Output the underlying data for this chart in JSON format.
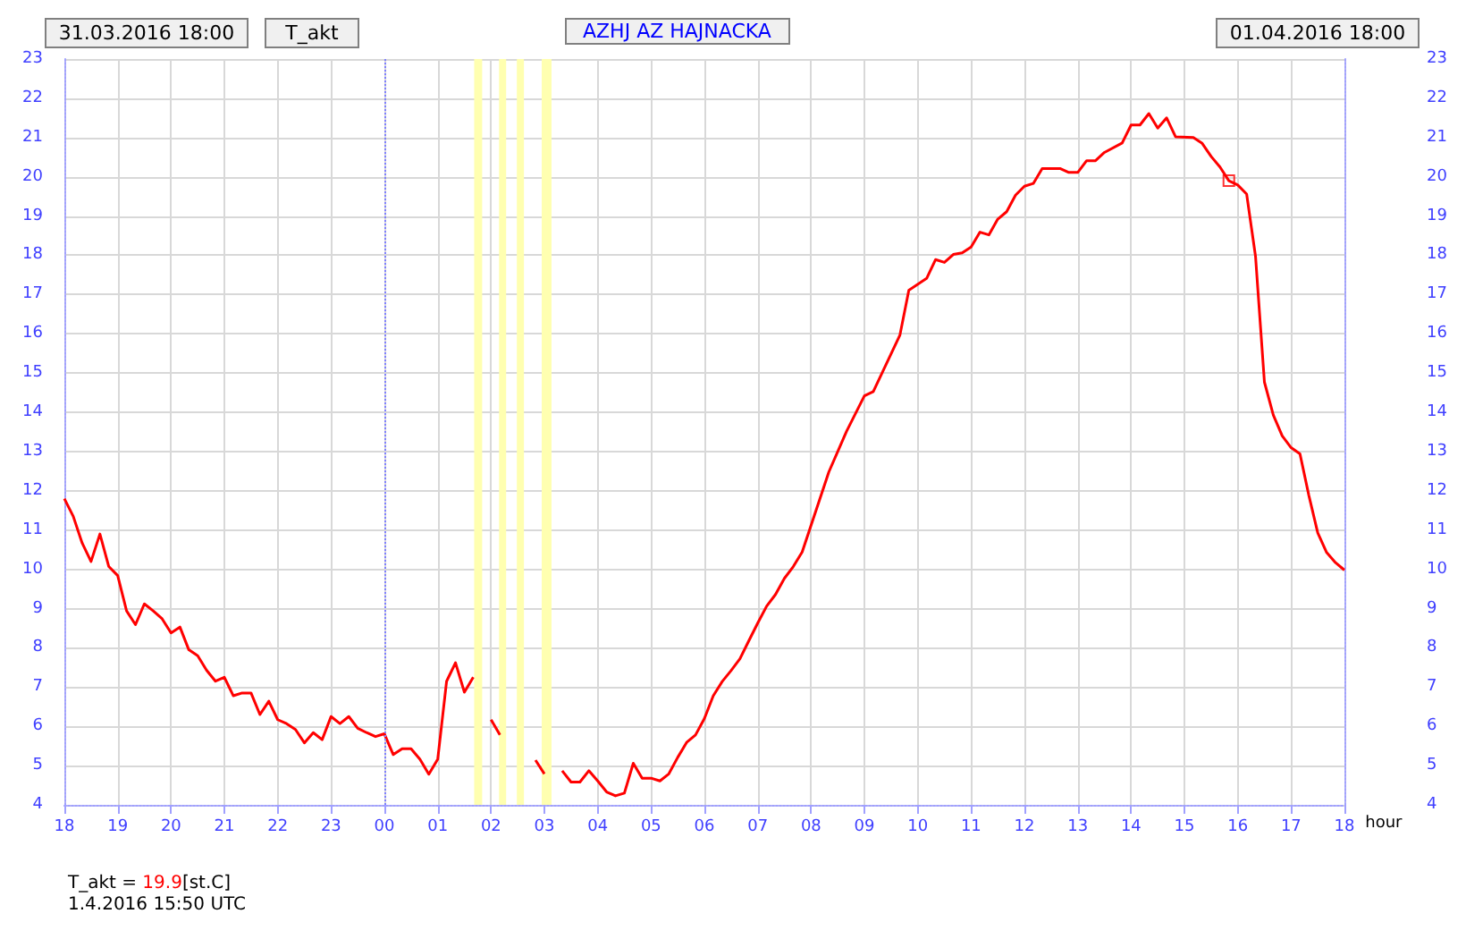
{
  "chart_data": {
    "type": "line",
    "title": "AZHJ AZ HAJNACKA",
    "subtitle": "T_akt",
    "xlabel": "hour",
    "x": [
      "2016-03-31T18:00",
      "2016-03-31T18:10",
      "2016-03-31T18:20",
      "2016-03-31T18:30",
      "2016-03-31T18:40",
      "2016-03-31T18:50",
      "2016-03-31T19:00",
      "2016-03-31T19:10",
      "2016-03-31T19:20",
      "2016-03-31T19:30",
      "2016-03-31T19:40",
      "2016-03-31T19:50",
      "2016-03-31T20:00",
      "2016-03-31T20:10",
      "2016-03-31T20:20",
      "2016-03-31T20:30",
      "2016-03-31T20:40",
      "2016-03-31T20:50",
      "2016-03-31T21:00",
      "2016-03-31T21:10",
      "2016-03-31T21:20",
      "2016-03-31T21:30",
      "2016-03-31T21:40",
      "2016-03-31T21:50",
      "2016-03-31T22:00",
      "2016-03-31T22:10",
      "2016-03-31T22:20",
      "2016-03-31T22:30",
      "2016-03-31T22:40",
      "2016-03-31T22:50",
      "2016-03-31T23:00",
      "2016-03-31T23:10",
      "2016-03-31T23:20",
      "2016-03-31T23:30",
      "2016-03-31T23:40",
      "2016-03-31T23:50",
      "2016-04-01T00:00",
      "2016-04-01T00:10",
      "2016-04-01T00:20",
      "2016-04-01T00:30",
      "2016-04-01T00:40",
      "2016-04-01T00:50",
      "2016-04-01T01:00",
      "2016-04-01T01:10",
      "2016-04-01T01:20",
      "2016-04-01T01:30",
      "2016-04-01T01:40",
      "2016-04-01T01:50",
      "2016-04-01T02:00",
      "2016-04-01T02:10",
      "2016-04-01T02:30",
      "2016-04-01T02:50",
      "2016-04-01T03:00",
      "2016-04-01T03:10",
      "2016-04-01T03:20",
      "2016-04-01T03:30",
      "2016-04-01T03:40",
      "2016-04-01T03:50",
      "2016-04-01T04:00",
      "2016-04-01T04:10",
      "2016-04-01T04:20",
      "2016-04-01T04:30",
      "2016-04-01T04:40",
      "2016-04-01T04:50",
      "2016-04-01T05:00",
      "2016-04-01T05:10",
      "2016-04-01T05:20",
      "2016-04-01T05:30",
      "2016-04-01T05:40",
      "2016-04-01T05:50",
      "2016-04-01T06:00",
      "2016-04-01T06:10",
      "2016-04-01T06:20",
      "2016-04-01T06:30",
      "2016-04-01T06:40",
      "2016-04-01T06:50",
      "2016-04-01T07:00",
      "2016-04-01T07:10",
      "2016-04-01T07:20",
      "2016-04-01T07:30",
      "2016-04-01T07:40",
      "2016-04-01T07:50",
      "2016-04-01T08:20",
      "2016-04-01T08:40",
      "2016-04-01T09:00",
      "2016-04-01T09:10",
      "2016-04-01T09:40",
      "2016-04-01T09:50",
      "2016-04-01T10:10",
      "2016-04-01T10:20",
      "2016-04-01T10:30",
      "2016-04-01T10:40",
      "2016-04-01T10:50",
      "2016-04-01T11:00",
      "2016-04-01T11:10",
      "2016-04-01T11:20",
      "2016-04-01T11:30",
      "2016-04-01T11:40",
      "2016-04-01T11:50",
      "2016-04-01T12:00",
      "2016-04-01T12:10",
      "2016-04-01T12:20",
      "2016-04-01T12:40",
      "2016-04-01T12:50",
      "2016-04-01T13:00",
      "2016-04-01T13:10",
      "2016-04-01T13:20",
      "2016-04-01T13:30",
      "2016-04-01T13:50",
      "2016-04-01T14:00",
      "2016-04-01T14:10",
      "2016-04-01T14:20",
      "2016-04-01T14:30",
      "2016-04-01T14:40",
      "2016-04-01T14:50",
      "2016-04-01T15:10",
      "2016-04-01T15:20",
      "2016-04-01T15:30",
      "2016-04-01T15:40",
      "2016-04-01T15:50",
      "2016-04-01T16:00",
      "2016-04-01T16:10",
      "2016-04-01T16:20",
      "2016-04-01T16:30",
      "2016-04-01T16:40",
      "2016-04-01T16:50",
      "2016-04-01T17:00",
      "2016-04-01T17:10",
      "2016-04-01T17:20",
      "2016-04-01T17:30",
      "2016-04-01T17:40",
      "2016-04-01T17:50",
      "2016-04-01T18:00"
    ],
    "series": [
      {
        "color": "#ff0000",
        "values": [
          11.8,
          11.35,
          10.67,
          10.2,
          10.9,
          10.07,
          9.84,
          8.94,
          8.59,
          9.12,
          8.94,
          8.74,
          8.38,
          8.53,
          7.95,
          7.8,
          7.43,
          7.15,
          7.25,
          6.78,
          6.85,
          6.85,
          6.3,
          6.64,
          6.17,
          6.07,
          5.92,
          5.58,
          5.84,
          5.66,
          6.25,
          6.07,
          6.25,
          5.95,
          5.84,
          5.74,
          5.81,
          5.28,
          5.43,
          5.43,
          5.16,
          4.78,
          5.16,
          7.15,
          7.62,
          6.87,
          7.25,
          null,
          6.17,
          5.78,
          null,
          5.14,
          4.79,
          null,
          4.87,
          4.58,
          4.58,
          4.87,
          4.61,
          4.33,
          4.23,
          4.3,
          5.06,
          4.68,
          4.68,
          4.61,
          4.79,
          5.21,
          5.59,
          5.78,
          6.2,
          6.78,
          7.14,
          7.42,
          7.72,
          8.18,
          8.63,
          9.06,
          9.36,
          9.77,
          10.07,
          10.44,
          12.48,
          13.52,
          14.42,
          14.53,
          15.97,
          17.11,
          17.41,
          17.89,
          17.82,
          18.02,
          18.06,
          18.21,
          18.59,
          18.52,
          18.92,
          19.11,
          19.53,
          19.76,
          19.83,
          20.21,
          20.21,
          20.11,
          20.11,
          20.41,
          20.41,
          20.62,
          20.86,
          21.32,
          21.32,
          21.61,
          21.24,
          21.5,
          21.02,
          21.0,
          20.85,
          20.52,
          20.25,
          19.9,
          19.79,
          19.56,
          17.97,
          14.77,
          13.93,
          13.4,
          13.1,
          12.94,
          11.88,
          10.93,
          10.43,
          10.17,
          9.98
        ]
      },
      {
        "type": "scatter",
        "color": "#ff0000",
        "marker": "square",
        "x": [
          "2016-04-01T15:50"
        ],
        "values": [
          19.9
        ]
      }
    ],
    "xlim": [
      "2016-03-31T18:00",
      "2016-04-01T18:00"
    ],
    "xticks": [
      {
        "value": "2016-03-31T18:00",
        "label": "18"
      },
      {
        "value": "2016-03-31T19:00",
        "label": "19"
      },
      {
        "value": "2016-03-31T20:00",
        "label": "20"
      },
      {
        "value": "2016-03-31T21:00",
        "label": "21"
      },
      {
        "value": "2016-03-31T22:00",
        "label": "22"
      },
      {
        "value": "2016-03-31T23:00",
        "label": "23"
      },
      {
        "value": "2016-04-01T00:00",
        "label": "00"
      },
      {
        "value": "2016-04-01T01:00",
        "label": "01"
      },
      {
        "value": "2016-04-01T02:00",
        "label": "02"
      },
      {
        "value": "2016-04-01T03:00",
        "label": "03"
      },
      {
        "value": "2016-04-01T04:00",
        "label": "04"
      },
      {
        "value": "2016-04-01T05:00",
        "label": "05"
      },
      {
        "value": "2016-04-01T06:00",
        "label": "06"
      },
      {
        "value": "2016-04-01T07:00",
        "label": "07"
      },
      {
        "value": "2016-04-01T08:00",
        "label": "08"
      },
      {
        "value": "2016-04-01T09:00",
        "label": "09"
      },
      {
        "value": "2016-04-01T10:00",
        "label": "10"
      },
      {
        "value": "2016-04-01T11:00",
        "label": "11"
      },
      {
        "value": "2016-04-01T12:00",
        "label": "12"
      },
      {
        "value": "2016-04-01T13:00",
        "label": "13"
      },
      {
        "value": "2016-04-01T14:00",
        "label": "14"
      },
      {
        "value": "2016-04-01T15:00",
        "label": "15"
      },
      {
        "value": "2016-04-01T16:00",
        "label": "16"
      },
      {
        "value": "2016-04-01T17:00",
        "label": "17"
      },
      {
        "value": "2016-04-01T18:00",
        "label": "18"
      }
    ],
    "ylim": [
      4,
      23
    ],
    "yticks": [
      4,
      5,
      6,
      7,
      8,
      9,
      10,
      11,
      12,
      13,
      14,
      15,
      16,
      17,
      18,
      19,
      20,
      21,
      22,
      23
    ],
    "y2lim": [
      4,
      23
    ],
    "y2ticks": [
      4,
      5,
      6,
      7,
      8,
      9,
      10,
      11,
      12,
      13,
      14,
      15,
      16,
      17,
      18,
      19,
      20,
      21,
      22,
      23
    ],
    "ref_lines": [
      {
        "axis": "x",
        "value": "2016-04-01T00:00",
        "color": "#8080ff",
        "line_style": "dotted"
      }
    ],
    "bands": [
      {
        "axis": "x",
        "from": "2016-04-01T01:41",
        "to": "2016-04-01T01:50",
        "color": "#ffffb0"
      },
      {
        "axis": "x",
        "from": "2016-04-01T02:09",
        "to": "2016-04-01T02:17",
        "color": "#ffffb0"
      },
      {
        "axis": "x",
        "from": "2016-04-01T02:29",
        "to": "2016-04-01T02:37",
        "color": "#ffffb0"
      },
      {
        "axis": "x",
        "from": "2016-04-01T02:57",
        "to": "2016-04-01T03:08",
        "color": "#ffffb0"
      }
    ],
    "annotations": [
      "31.03.2016 18:00",
      "01.04.2016 18:00",
      "T_akt = 19.9[st.C]",
      "1.4.2016 15:50 UTC"
    ],
    "grid": true,
    "marker": "none",
    "line_style": "solid"
  }
}
